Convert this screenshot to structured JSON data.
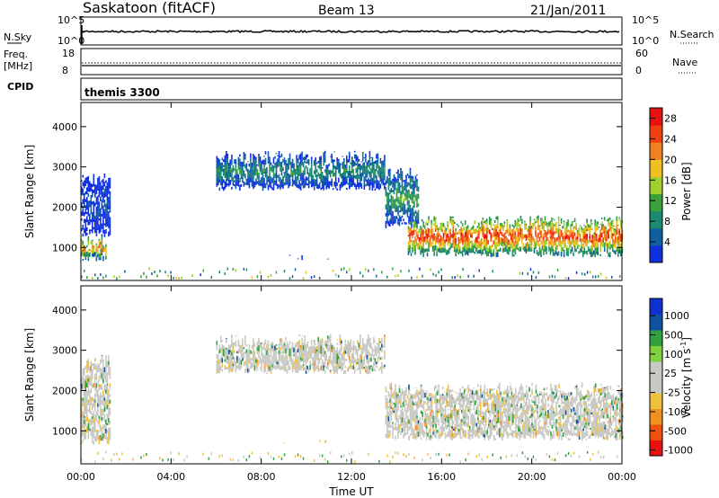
{
  "header": {
    "station": "Saskatoon (fitACF)",
    "beam": "Beam 13",
    "date": "21/Jan/2011"
  },
  "strips": {
    "nsky_label": "N.Sky",
    "nsearch_label": "N.Search",
    "left_top_tick": "10^5",
    "left_bottom_tick": "10^0",
    "right_top_tick": "10^5",
    "right_bottom_tick": "10^0",
    "freq_label_line1": "Freq.",
    "freq_label_line2": "[MHz]",
    "freq_ticks": [
      "18",
      "8"
    ],
    "nave_label": "Nave",
    "nave_ticks": [
      "60",
      "0"
    ],
    "cpid_label": "CPID",
    "cpid_value": "themis 3300"
  },
  "colors": {
    "power_scale": [
      "#1030e0",
      "#1060a0",
      "#1a8a70",
      "#3aa03a",
      "#a0d030",
      "#f0c020",
      "#f08020",
      "#f04010",
      "#e81010"
    ],
    "velocity_scale": [
      "#e81010",
      "#f05010",
      "#f09020",
      "#f0c040",
      "#c8c8c4",
      "#c8c8c4",
      "#80d040",
      "#30a040",
      "#1050a0",
      "#1030d0"
    ]
  },
  "chart_data": [
    {
      "type": "heatmap",
      "title": "",
      "ylabel": "Slant Range [km]",
      "xlabel": "",
      "xlim": [
        0,
        24
      ],
      "ylim": [
        180,
        4600
      ],
      "yticks": [
        "1000",
        "2000",
        "3000",
        "4000"
      ],
      "colorbar": {
        "label": "Power [dB]",
        "tick_labels": [
          "4",
          "8",
          "12",
          "16",
          "20",
          "24",
          "28"
        ],
        "range": [
          0,
          30
        ]
      },
      "features": [
        {
          "time_start": 0.0,
          "time_end": 1.1,
          "range_low": 700,
          "range_high": 1300,
          "peak_db": 26
        },
        {
          "time_start": 0.0,
          "time_end": 1.3,
          "range_low": 1300,
          "range_high": 2900,
          "peak_db": 6
        },
        {
          "time_start": 6.0,
          "time_end": 13.5,
          "range_low": 2450,
          "range_high": 3400,
          "peak_db": 12
        },
        {
          "time_start": 13.5,
          "time_end": 15.0,
          "range_low": 1500,
          "range_high": 3000,
          "peak_db": 14
        },
        {
          "time_start": 14.5,
          "time_end": 24.0,
          "range_low": 800,
          "range_high": 1800,
          "peak_db": 30
        },
        {
          "time_start": 9.0,
          "time_end": 11.0,
          "range_low": 720,
          "range_high": 820,
          "peak_db": 6
        }
      ]
    },
    {
      "type": "heatmap",
      "title": "",
      "ylabel": "Slant Range [km]",
      "xlabel": "Time UT",
      "xlim": [
        0,
        24
      ],
      "ylim": [
        180,
        4600
      ],
      "yticks": [
        "1000",
        "2000",
        "3000",
        "4000"
      ],
      "xticks": [
        "00:00",
        "04:00",
        "08:00",
        "12:00",
        "16:00",
        "20:00",
        "00:00"
      ],
      "colorbar": {
        "label": "Velocity [m s",
        "label_superscript": "-1",
        "label_close": "]",
        "tick_labels": [
          "1000",
          "500",
          "100",
          "25",
          "-25",
          "-100",
          "-500",
          "-1000"
        ]
      },
      "features": [
        {
          "time_start": 0.0,
          "time_end": 1.3,
          "range_low": 700,
          "range_high": 2900,
          "dominant_velocity": 0
        },
        {
          "time_start": 6.0,
          "time_end": 13.5,
          "range_low": 2450,
          "range_high": 3400,
          "dominant_velocity": 0
        },
        {
          "time_start": 13.5,
          "time_end": 24.0,
          "range_low": 800,
          "range_high": 2200,
          "dominant_velocity": 0
        },
        {
          "time_start": 9.0,
          "time_end": 11.0,
          "range_low": 720,
          "range_high": 820,
          "dominant_velocity": -60
        }
      ]
    }
  ]
}
